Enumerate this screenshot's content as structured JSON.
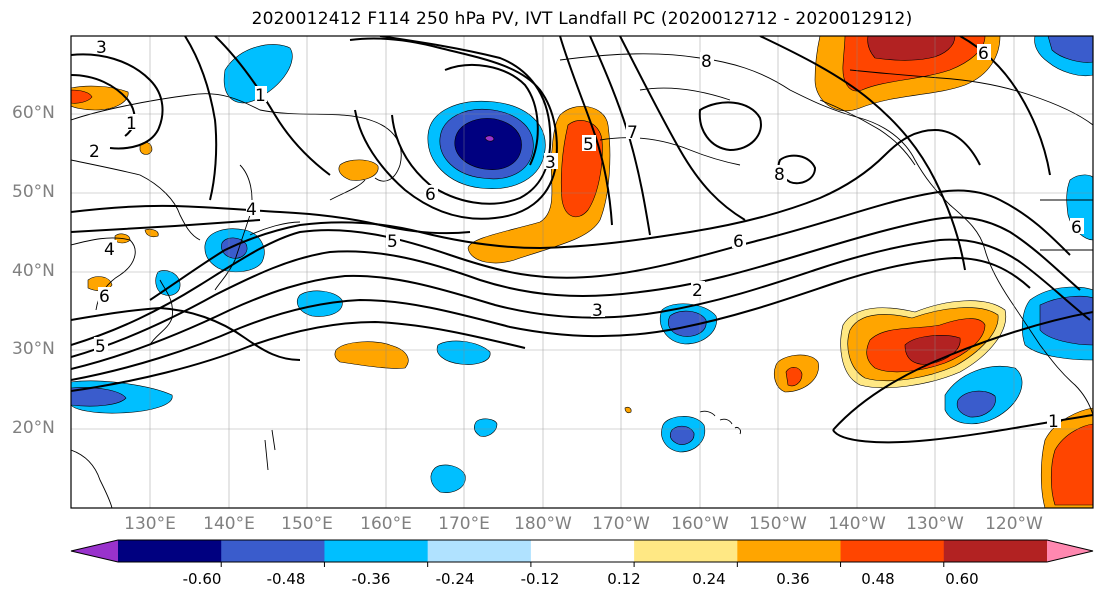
{
  "title": "2020012412 F114 250 hPa PV, IVT Landfall PC (2020012712 - 2020012912)",
  "map": {
    "lat_labels": [
      "60°N",
      "50°N",
      "40°N",
      "30°N",
      "20°N"
    ],
    "lon_labels": [
      "130°E",
      "140°E",
      "150°E",
      "160°E",
      "170°E",
      "180°W",
      "170°W",
      "160°W",
      "150°W",
      "140°W",
      "130°W",
      "120°W"
    ],
    "pv_contour_labels": [
      "3",
      "1",
      "2",
      "1",
      "4",
      "4",
      "6",
      "5",
      "6",
      "3",
      "5",
      "7",
      "8",
      "8",
      "6",
      "5",
      "3",
      "2",
      "6",
      "6",
      "1"
    ]
  },
  "colorbar": {
    "colors": [
      "#9932cc",
      "#000080",
      "#3a5ccc",
      "#00bfff",
      "#b0e2ff",
      "#ffffff",
      "#ffe884",
      "#ffa500",
      "#ff4500",
      "#b22222",
      "#ff88b0"
    ],
    "tick_labels": [
      "-0.60",
      "-0.48",
      "-0.36",
      "-0.24",
      "-0.12",
      "0.12",
      "0.24",
      "0.36",
      "0.48",
      "0.60"
    ]
  }
}
